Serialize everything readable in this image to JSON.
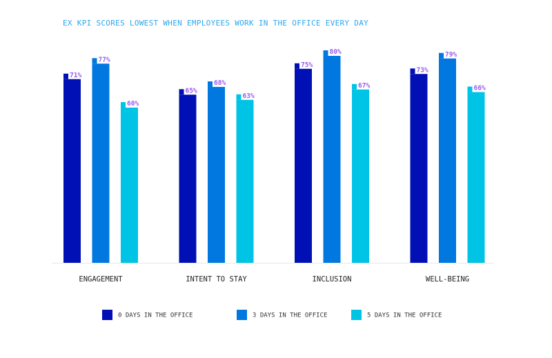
{
  "chart_data": {
    "type": "bar",
    "title": "EX KPI SCORES LOWEST WHEN EMPLOYEES WORK IN THE OFFICE EVERY DAY",
    "categories": [
      "ENGAGEMENT",
      "INTENT TO STAY",
      "INCLUSION",
      "WELL-BEING"
    ],
    "series": [
      {
        "name": "0 DAYS IN THE OFFICE",
        "color": "#0010b4",
        "values": [
          71,
          65,
          75,
          73
        ]
      },
      {
        "name": "3 DAYS IN THE OFFICE",
        "color": "#0078e0",
        "values": [
          77,
          68,
          80,
          79
        ]
      },
      {
        "name": "5 DAYS IN THE OFFICE",
        "color": "#00c4e6",
        "values": [
          60,
          63,
          67,
          66
        ]
      }
    ],
    "value_suffix": "%",
    "ylim": [
      0,
      100
    ],
    "grid": false,
    "legend": "bottom",
    "label_color": "#9a5cf0"
  }
}
